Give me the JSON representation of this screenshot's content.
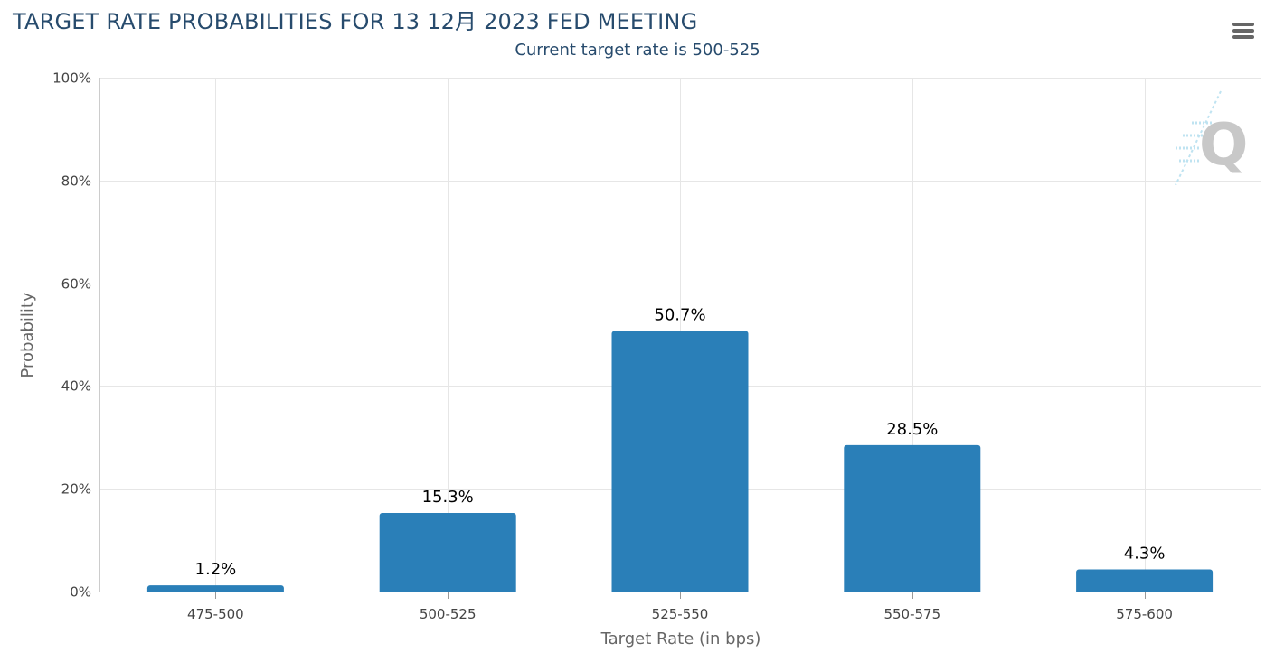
{
  "header": {
    "title": "TARGET RATE PROBABILITIES FOR 13 12月 2023 FED MEETING",
    "subtitle": "Current target rate is 500-525"
  },
  "menu": {
    "icon": "hamburger-menu-icon"
  },
  "watermark": {
    "icon": "q-logo-icon",
    "text": "Q"
  },
  "colors": {
    "bar": "#2a7fb8",
    "title": "#274b6d",
    "grid": "#e6e6e6",
    "axis": "#999999"
  },
  "chart_data": {
    "type": "bar",
    "xlabel": "Target Rate (in bps)",
    "ylabel": "Probability",
    "categories": [
      "475-500",
      "500-525",
      "525-550",
      "550-575",
      "575-600"
    ],
    "values": [
      1.2,
      15.3,
      50.7,
      28.5,
      4.3
    ],
    "data_labels": [
      "1.2%",
      "15.3%",
      "50.7%",
      "28.5%",
      "4.3%"
    ],
    "ylim": [
      0,
      100
    ],
    "yticks": [
      0,
      20,
      40,
      60,
      80,
      100
    ],
    "ytick_labels": [
      "0%",
      "20%",
      "40%",
      "60%",
      "80%",
      "100%"
    ],
    "grid": true,
    "legend": "none"
  }
}
